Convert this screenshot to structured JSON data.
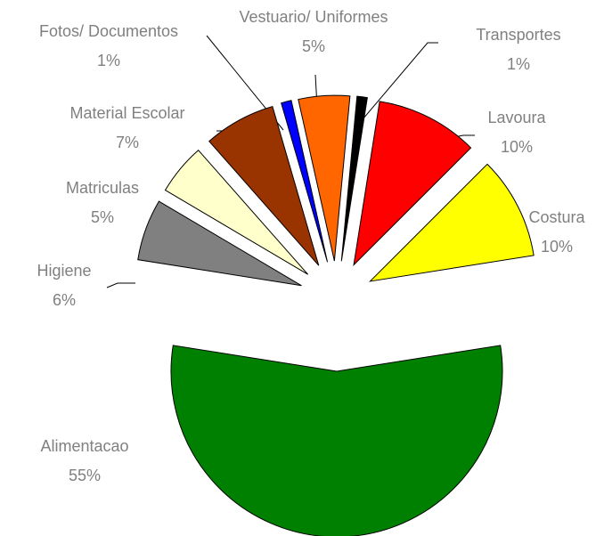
{
  "chart_data": {
    "type": "pie",
    "categories": [
      "Alimentacao",
      "Higiene",
      "Matriculas",
      "Material Escolar",
      "Fotos/ Documentos",
      "Vestuario/ Uniformes",
      "Transportes",
      "Lavoura",
      "Costura"
    ],
    "values": [
      55,
      6,
      5,
      7,
      1,
      5,
      1,
      10,
      10
    ],
    "value_labels": [
      "55%",
      "6%",
      "5%",
      "7%",
      "1%",
      "5%",
      "1%",
      "10%",
      "10%"
    ],
    "colors": [
      "#008000",
      "#808080",
      "#ffffcc",
      "#993300",
      "#0000ff",
      "#ff6600",
      "#000000",
      "#ff0000",
      "#ffff00"
    ]
  }
}
